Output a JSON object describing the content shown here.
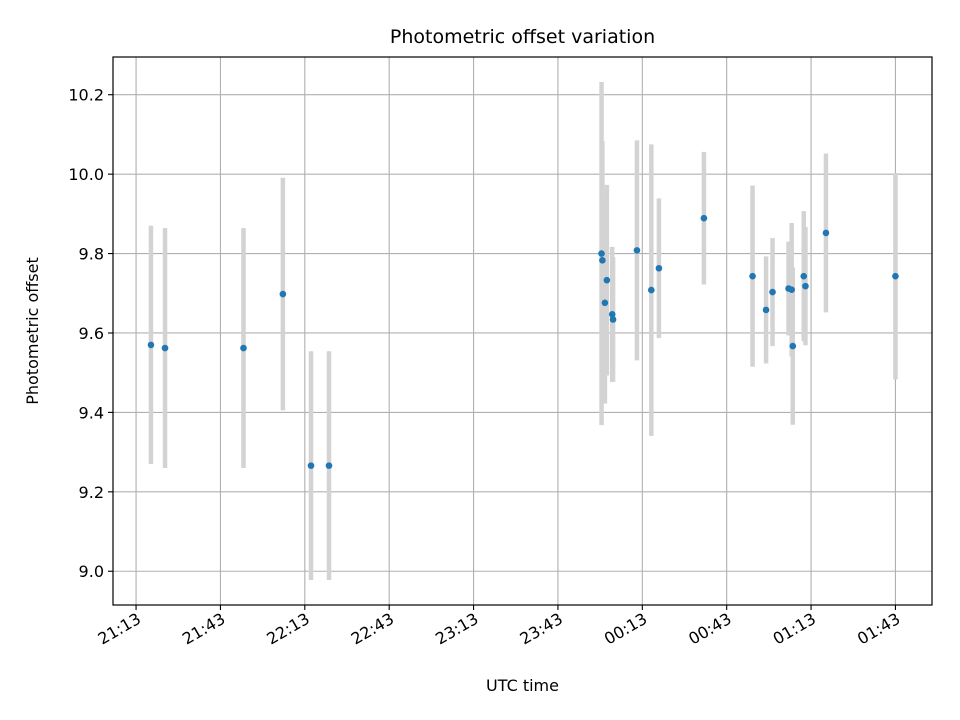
{
  "chart_data": {
    "type": "scatter",
    "title": "Photometric offset variation",
    "xlabel": "UTC time",
    "ylabel": "Photometric offset",
    "x_unit": "minutes after 21:00 UTC",
    "x_ticks": [
      {
        "label": "21:13",
        "x": 13
      },
      {
        "label": "21:43",
        "x": 43
      },
      {
        "label": "22:13",
        "x": 73
      },
      {
        "label": "22:43",
        "x": 103
      },
      {
        "label": "23:13",
        "x": 133
      },
      {
        "label": "23:43",
        "x": 163
      },
      {
        "label": "00:13",
        "x": 193
      },
      {
        "label": "00:43",
        "x": 223
      },
      {
        "label": "01:13",
        "x": 253
      },
      {
        "label": "01:43",
        "x": 283
      }
    ],
    "y_ticks": [
      9.0,
      9.2,
      9.4,
      9.6,
      9.8,
      10.0,
      10.2
    ],
    "xlim": [
      4.8,
      296
    ],
    "ylim": [
      8.915,
      10.295
    ],
    "grid": true,
    "marker_color": "#1f77b4",
    "errorbar_color": "#d3d3d3",
    "points": [
      {
        "x": 18.3,
        "y": 9.57,
        "yerr": 0.3
      },
      {
        "x": 23.3,
        "y": 9.562,
        "yerr": 0.302
      },
      {
        "x": 51.2,
        "y": 9.562,
        "yerr": 0.302
      },
      {
        "x": 65.2,
        "y": 9.698,
        "yerr": 0.293
      },
      {
        "x": 75.2,
        "y": 9.266,
        "yerr": 0.288
      },
      {
        "x": 81.6,
        "y": 9.266,
        "yerr": 0.288
      },
      {
        "x": 178.5,
        "y": 9.8,
        "yerr": 0.432
      },
      {
        "x": 178.8,
        "y": 9.783,
        "yerr": 0.3
      },
      {
        "x": 179.7,
        "y": 9.676,
        "yerr": 0.254
      },
      {
        "x": 180.4,
        "y": 9.733,
        "yerr": 0.24
      },
      {
        "x": 182.3,
        "y": 9.647,
        "yerr": 0.17
      },
      {
        "x": 182.6,
        "y": 9.634,
        "yerr": 0.157
      },
      {
        "x": 191.1,
        "y": 9.808,
        "yerr": 0.277
      },
      {
        "x": 196.2,
        "y": 9.708,
        "yerr": 0.367
      },
      {
        "x": 198.9,
        "y": 9.763,
        "yerr": 0.176
      },
      {
        "x": 214.9,
        "y": 9.889,
        "yerr": 0.167
      },
      {
        "x": 232.2,
        "y": 9.743,
        "yerr": 0.228
      },
      {
        "x": 237.0,
        "y": 9.658,
        "yerr": 0.135
      },
      {
        "x": 239.3,
        "y": 9.703,
        "yerr": 0.136
      },
      {
        "x": 245.0,
        "y": 9.712,
        "yerr": 0.118
      },
      {
        "x": 246.1,
        "y": 9.709,
        "yerr": 0.168
      },
      {
        "x": 246.5,
        "y": 9.567,
        "yerr": 0.198
      },
      {
        "x": 250.4,
        "y": 9.743,
        "yerr": 0.164
      },
      {
        "x": 251.0,
        "y": 9.718,
        "yerr": 0.149
      },
      {
        "x": 258.3,
        "y": 9.852,
        "yerr": 0.2
      },
      {
        "x": 283.0,
        "y": 9.743,
        "yerr": 0.26
      }
    ]
  }
}
